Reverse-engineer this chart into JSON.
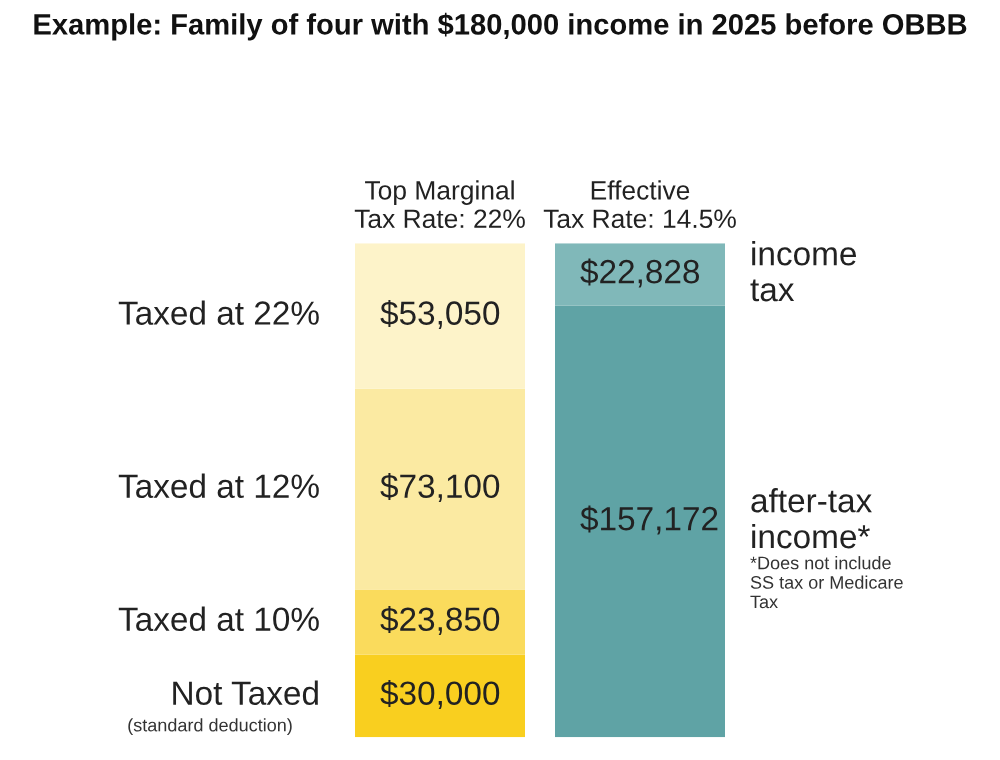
{
  "chart_data": {
    "type": "bar",
    "stacked": true,
    "title": "Example: Family of four with $180,000 income in 2025 before OBBB",
    "categories": [
      "Top Marginal\nTax Rate: 22%",
      "Effective\nTax Rate: 14.5%"
    ],
    "series": [
      {
        "name": "Not Taxed",
        "color": "#f9cf1f",
        "values": [
          30000,
          null
        ],
        "value_labels": [
          "$30,000",
          null
        ]
      },
      {
        "name": "Taxed at 10%",
        "color": "#fadb5c",
        "values": [
          23850,
          null
        ],
        "value_labels": [
          "$23,850",
          null
        ]
      },
      {
        "name": "Taxed at 12%",
        "color": "#fbeaa2",
        "values": [
          73100,
          null
        ],
        "value_labels": [
          "$73,100",
          null
        ]
      },
      {
        "name": "Taxed at 22%",
        "color": "#fdf3c9",
        "values": [
          53050,
          null
        ],
        "value_labels": [
          "$53,050",
          null
        ]
      },
      {
        "name": "after-tax\nincome*",
        "color": "#5fa3a5",
        "values": [
          null,
          157172
        ],
        "value_labels": [
          null,
          "$157,172"
        ]
      },
      {
        "name": "income\ntax",
        "color": "#80b8b9",
        "values": [
          null,
          22828
        ],
        "value_labels": [
          null,
          "$22,828"
        ]
      }
    ],
    "annotations": [
      "(standard deduction)",
      "*Does not include\nSS tax or Medicare\nTax"
    ],
    "legend": false
  }
}
